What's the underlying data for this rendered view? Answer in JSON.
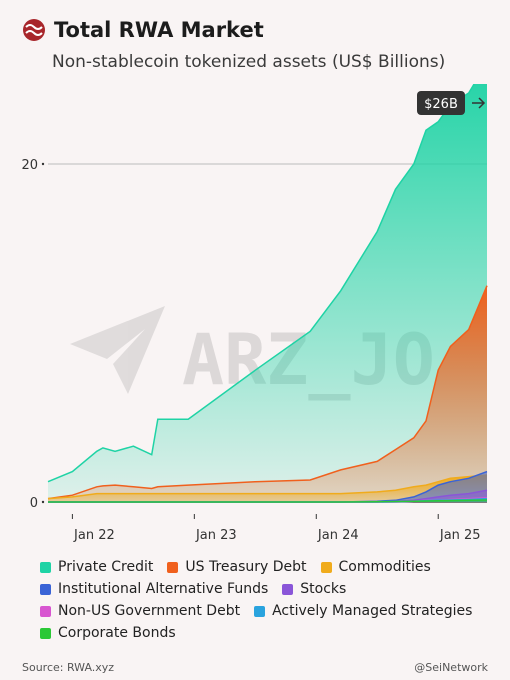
{
  "header": {
    "title": "Total RWA Market",
    "subtitle": "Non-stablecoin tokenized assets (US$ Billions)"
  },
  "footer": {
    "source": "Source: RWA.xyz",
    "handle": "@SeiNetwork"
  },
  "watermark": {
    "text": "ARZ_JO",
    "icon": "telegram-icon"
  },
  "callout": {
    "label": "$26B",
    "icon": "arrow-right-icon"
  },
  "colors": {
    "private_credit": "#1fd3a5",
    "us_treasury": "#f0601d",
    "commodities": "#f0ab1c",
    "inst_alt_funds": "#3a63d6",
    "stocks": "#8a55d8",
    "non_us_gov": "#d855d0",
    "actively_managed": "#2aa3de",
    "corporate_bonds": "#2bc836"
  },
  "chart_data": {
    "type": "area",
    "title": "Total RWA Market",
    "subtitle": "Non-stablecoin tokenized assets (US$ Billions)",
    "x_tick_labels": [
      "Jan 22",
      "Jan 23",
      "Jan 24",
      "Jan 25"
    ],
    "y_tick_labels": [
      "0",
      "20"
    ],
    "ylim": [
      0,
      26
    ],
    "annotation": "$26B",
    "x": [
      2021.8,
      2022.0,
      2022.2,
      2022.25,
      2022.35,
      2022.5,
      2022.65,
      2022.7,
      2022.95,
      2023.5,
      2023.95,
      2024.2,
      2024.5,
      2024.65,
      2024.8,
      2024.9,
      2025.0,
      2025.1,
      2025.25,
      2025.4
    ],
    "series": [
      {
        "name": "Private Credit",
        "values": [
          1.2,
          1.8,
          3.0,
          3.2,
          3.0,
          3.3,
          2.8,
          4.9,
          4.9,
          7.8,
          10.1,
          12.5,
          16.0,
          18.5,
          20.0,
          22.0,
          22.5,
          23.5,
          24.2,
          26.0
        ]
      },
      {
        "name": "US Treasury Debt",
        "values": [
          0.2,
          0.4,
          0.9,
          0.95,
          1.0,
          0.9,
          0.8,
          0.9,
          1.0,
          1.2,
          1.3,
          1.9,
          2.4,
          3.1,
          3.8,
          4.8,
          7.8,
          9.2,
          10.2,
          12.8
        ]
      },
      {
        "name": "Commodities",
        "values": [
          0.2,
          0.3,
          0.5,
          0.5,
          0.5,
          0.5,
          0.5,
          0.5,
          0.5,
          0.5,
          0.5,
          0.5,
          0.6,
          0.7,
          0.9,
          1.0,
          1.2,
          1.4,
          1.5,
          1.6
        ]
      },
      {
        "name": "Institutional Alternative Funds",
        "values": [
          0,
          0,
          0,
          0,
          0,
          0,
          0,
          0,
          0,
          0,
          0,
          0,
          0.05,
          0.1,
          0.3,
          0.6,
          1.0,
          1.2,
          1.4,
          1.8
        ]
      },
      {
        "name": "Stocks",
        "values": [
          0,
          0,
          0,
          0,
          0,
          0,
          0,
          0,
          0,
          0,
          0,
          0,
          0,
          0.05,
          0.1,
          0.2,
          0.3,
          0.4,
          0.5,
          0.7
        ]
      },
      {
        "name": "Non-US Government Debt",
        "values": [
          0,
          0,
          0,
          0,
          0,
          0,
          0,
          0,
          0,
          0,
          0,
          0,
          0,
          0,
          0.05,
          0.1,
          0.1,
          0.15,
          0.2,
          0.25
        ]
      },
      {
        "name": "Actively Managed Strategies",
        "values": [
          0,
          0,
          0,
          0,
          0,
          0,
          0,
          0,
          0,
          0,
          0,
          0,
          0,
          0.02,
          0.05,
          0.08,
          0.1,
          0.12,
          0.15,
          0.2
        ]
      },
      {
        "name": "Corporate Bonds",
        "values": [
          0,
          0,
          0,
          0,
          0,
          0,
          0,
          0,
          0,
          0,
          0,
          0,
          0.02,
          0.03,
          0.05,
          0.06,
          0.07,
          0.08,
          0.1,
          0.12
        ]
      }
    ]
  },
  "legend": {
    "rows": [
      [
        {
          "label": "Private Credit",
          "key": "private_credit"
        },
        {
          "label": "US Treasury Debt",
          "key": "us_treasury"
        },
        {
          "label": "Commodities",
          "key": "commodities"
        }
      ],
      [
        {
          "label": "Institutional Alternative Funds",
          "key": "inst_alt_funds"
        },
        {
          "label": "Stocks",
          "key": "stocks"
        }
      ],
      [
        {
          "label": "Non-US Government Debt",
          "key": "non_us_gov"
        },
        {
          "label": "Actively Managed Strategies",
          "key": "actively_managed"
        }
      ],
      [
        {
          "label": "Corporate Bonds",
          "key": "corporate_bonds"
        }
      ]
    ]
  }
}
